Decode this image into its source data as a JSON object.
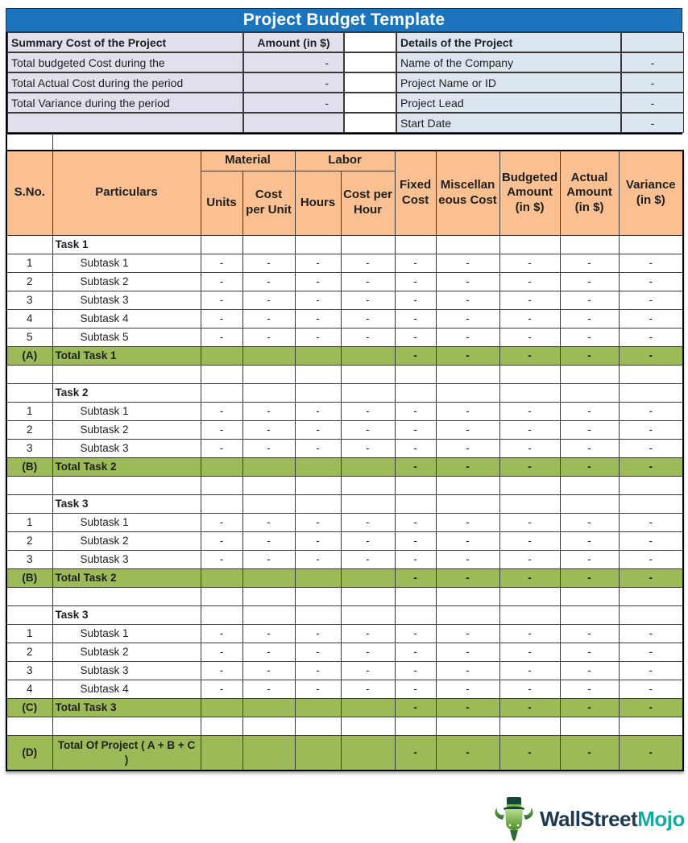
{
  "title": "Project Budget Template",
  "summary": {
    "header": {
      "label": "Summary Cost of the Project",
      "amount": "Amount (in $)"
    },
    "rows": [
      {
        "label": "Total budgeted Cost during the",
        "amount": "-"
      },
      {
        "label": "Total Actual Cost during the period",
        "amount": "-"
      },
      {
        "label": "Total Variance during the period",
        "amount": "-"
      },
      {
        "label": "",
        "amount": ""
      }
    ]
  },
  "details": {
    "header": "Details of the Project",
    "rows": [
      {
        "label": "Name of the Company",
        "value": "-"
      },
      {
        "label": "Project Name or ID",
        "value": "-"
      },
      {
        "label": "Project Lead",
        "value": "-"
      },
      {
        "label": "Start Date",
        "value": "-"
      }
    ]
  },
  "table": {
    "header": {
      "sno": "S.No.",
      "particulars": "Particulars",
      "groups": [
        {
          "label": "Material",
          "cols": [
            "Units",
            "Cost per Unit"
          ]
        },
        {
          "label": "Labor",
          "cols": [
            "Hours",
            "Cost per Hour"
          ]
        }
      ],
      "singles": [
        "Fixed Cost",
        "Miscellaneous Cost",
        "Budgeted Amount (in $)",
        "Actual Amount (in $)",
        "Variance (in $)"
      ]
    },
    "rows": [
      {
        "type": "task",
        "sno": "",
        "label": "Task 1",
        "values": [
          "",
          "",
          "",
          "",
          "",
          "",
          "",
          "",
          ""
        ]
      },
      {
        "type": "subtask",
        "sno": "1",
        "label": "Subtask 1",
        "values": [
          "-",
          "-",
          "-",
          "-",
          "-",
          "-",
          "-",
          "-",
          "-"
        ]
      },
      {
        "type": "subtask",
        "sno": "2",
        "label": "Subtask 2",
        "values": [
          "-",
          "-",
          "-",
          "-",
          "-",
          "-",
          "-",
          "-",
          "-"
        ]
      },
      {
        "type": "subtask",
        "sno": "3",
        "label": "Subtask 3",
        "values": [
          "-",
          "-",
          "-",
          "-",
          "-",
          "-",
          "-",
          "-",
          "-"
        ]
      },
      {
        "type": "subtask",
        "sno": "4",
        "label": "Subtask 4",
        "values": [
          "-",
          "-",
          "-",
          "-",
          "-",
          "-",
          "-",
          "-",
          "-"
        ]
      },
      {
        "type": "subtask",
        "sno": "5",
        "label": "Subtask 5",
        "values": [
          "-",
          "-",
          "-",
          "-",
          "-",
          "-",
          "-",
          "-",
          "-"
        ]
      },
      {
        "type": "total",
        "sno": "(A)",
        "label": "Total Task 1",
        "values": [
          "",
          "",
          "",
          "",
          "-",
          "-",
          "-",
          "-",
          "-"
        ]
      },
      {
        "type": "spacer",
        "sno": "",
        "label": "",
        "values": [
          "",
          "",
          "",
          "",
          "",
          "",
          "",
          "",
          ""
        ]
      },
      {
        "type": "task",
        "sno": "",
        "label": "Task 2",
        "values": [
          "",
          "",
          "",
          "",
          "",
          "",
          "",
          "",
          ""
        ]
      },
      {
        "type": "subtask",
        "sno": "1",
        "label": "Subtask 1",
        "values": [
          "-",
          "-",
          "-",
          "-",
          "-",
          "-",
          "-",
          "-",
          "-"
        ]
      },
      {
        "type": "subtask",
        "sno": "2",
        "label": "Subtask 2",
        "values": [
          "-",
          "-",
          "-",
          "-",
          "-",
          "-",
          "-",
          "-",
          "-"
        ]
      },
      {
        "type": "subtask",
        "sno": "3",
        "label": "Subtask 3",
        "values": [
          "-",
          "-",
          "-",
          "-",
          "-",
          "-",
          "-",
          "-",
          "-"
        ]
      },
      {
        "type": "total",
        "sno": "(B)",
        "label": "Total Task 2",
        "values": [
          "",
          "",
          "",
          "",
          "-",
          "-",
          "-",
          "-",
          "-"
        ]
      },
      {
        "type": "spacer",
        "sno": "",
        "label": "",
        "values": [
          "",
          "",
          "",
          "",
          "",
          "",
          "",
          "",
          ""
        ]
      },
      {
        "type": "task",
        "sno": "",
        "label": "Task 3",
        "values": [
          "",
          "",
          "",
          "",
          "",
          "",
          "",
          "",
          ""
        ]
      },
      {
        "type": "subtask",
        "sno": "1",
        "label": "Subtask 1",
        "values": [
          "-",
          "-",
          "-",
          "-",
          "-",
          "-",
          "-",
          "-",
          "-"
        ]
      },
      {
        "type": "subtask",
        "sno": "2",
        "label": "Subtask 2",
        "values": [
          "-",
          "-",
          "-",
          "-",
          "-",
          "-",
          "-",
          "-",
          "-"
        ]
      },
      {
        "type": "subtask",
        "sno": "3",
        "label": "Subtask 3",
        "values": [
          "-",
          "-",
          "-",
          "-",
          "-",
          "-",
          "-",
          "-",
          "-"
        ]
      },
      {
        "type": "total",
        "sno": "(B)",
        "label": "Total Task 2",
        "values": [
          "",
          "",
          "",
          "",
          "-",
          "-",
          "-",
          "-",
          "-"
        ]
      },
      {
        "type": "spacer",
        "sno": "",
        "label": "",
        "values": [
          "",
          "",
          "",
          "",
          "",
          "",
          "",
          "",
          ""
        ]
      },
      {
        "type": "task",
        "sno": "",
        "label": "Task 3",
        "values": [
          "",
          "",
          "",
          "",
          "",
          "",
          "",
          "",
          ""
        ]
      },
      {
        "type": "subtask",
        "sno": "1",
        "label": "Subtask 1",
        "values": [
          "-",
          "-",
          "-",
          "-",
          "-",
          "-",
          "-",
          "-",
          "-"
        ]
      },
      {
        "type": "subtask",
        "sno": "2",
        "label": "Subtask 2",
        "values": [
          "-",
          "-",
          "-",
          "-",
          "-",
          "-",
          "-",
          "-",
          "-"
        ]
      },
      {
        "type": "subtask",
        "sno": "3",
        "label": "Subtask 3",
        "values": [
          "-",
          "-",
          "-",
          "-",
          "-",
          "-",
          "-",
          "-",
          "-"
        ]
      },
      {
        "type": "subtask",
        "sno": "4",
        "label": "Subtask 4",
        "values": [
          "-",
          "-",
          "-",
          "-",
          "-",
          "-",
          "-",
          "-",
          "-"
        ]
      },
      {
        "type": "total",
        "sno": "(C)",
        "label": "Total Task 3",
        "values": [
          "",
          "",
          "",
          "",
          "-",
          "-",
          "-",
          "-",
          "-"
        ]
      },
      {
        "type": "spacer",
        "sno": "",
        "label": "",
        "values": [
          "",
          "",
          "",
          "",
          "",
          "",
          "",
          "",
          ""
        ]
      },
      {
        "type": "grandtotal",
        "sno": "(D)",
        "label": "Total Of Project ( A + B + C )",
        "values": [
          "",
          "",
          "",
          "",
          "-",
          "-",
          "-",
          "-",
          "-"
        ]
      }
    ]
  },
  "logo": {
    "wallstreet": "WallStreet",
    "mojo": "Mojo"
  },
  "colors": {
    "title_bar": "#1B74BC",
    "summary_bg": "#E4DFEC",
    "details_bg": "#DCE6F1",
    "header_bg": "#FAC091",
    "total_row_bg": "#9CBA58",
    "logo_navy": "#1C3A52",
    "logo_teal": "#18A8A4"
  }
}
